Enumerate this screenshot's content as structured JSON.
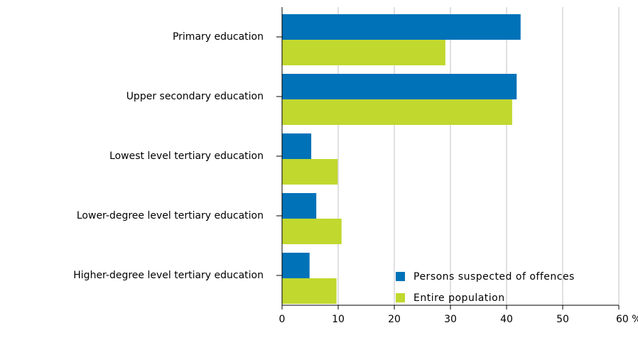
{
  "chart_data": {
    "type": "hbar",
    "categories": [
      "Primary education",
      "Upper secondary education",
      "Lowest level tertiary education",
      "Lower-degree level tertiary education",
      "Higher-degree level tertiary education"
    ],
    "series": [
      {
        "name": "Persons suspected of offences",
        "color": "#0072b8",
        "values": [
          42.5,
          41.8,
          5.2,
          6.1,
          4.9
        ]
      },
      {
        "name": "Entire population",
        "color": "#c1d82f",
        "values": [
          29.1,
          41.0,
          9.9,
          10.6,
          9.7
        ]
      }
    ],
    "xlim": [
      0,
      60
    ],
    "xticks": [
      0,
      10,
      20,
      30,
      40,
      50,
      {
        "value": 60,
        "label": "60 %"
      }
    ],
    "grid": true,
    "legend": "lower-right"
  }
}
